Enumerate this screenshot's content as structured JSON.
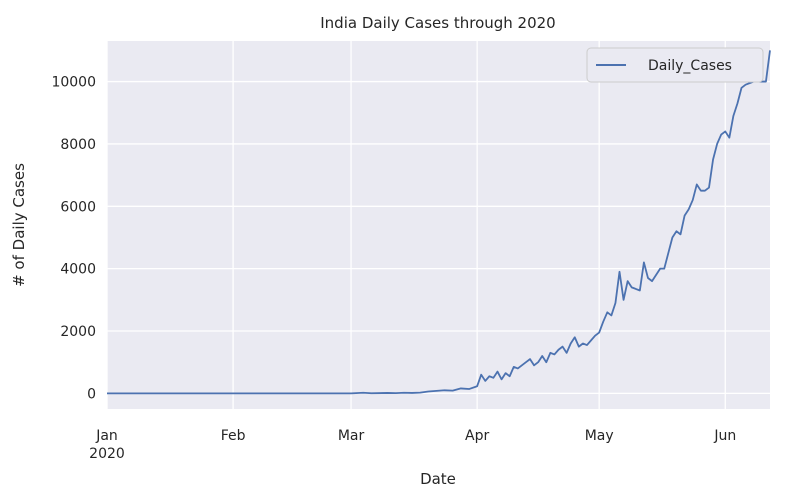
{
  "chart_data": {
    "type": "line",
    "title": "India Daily Cases through 2020",
    "xlabel": "Date",
    "ylabel": "# of Daily Cases",
    "x_range": [
      "2020-01-01",
      "2020-06-12"
    ],
    "ylim": [
      -500,
      11300
    ],
    "grid": true,
    "legend_position": "top-right",
    "colors": {
      "plot_bg": "#eaeaf2",
      "line": "#4c72b0",
      "grid": "#ffffff"
    },
    "x_ticks": [
      {
        "date": "2020-01-01",
        "label": "Jan",
        "sublabel": "2020"
      },
      {
        "date": "2020-02-01",
        "label": "Feb"
      },
      {
        "date": "2020-03-01",
        "label": "Mar"
      },
      {
        "date": "2020-04-01",
        "label": "Apr"
      },
      {
        "date": "2020-05-01",
        "label": "May"
      },
      {
        "date": "2020-06-01",
        "label": "Jun"
      }
    ],
    "y_ticks": [
      {
        "value": 0,
        "label": "0"
      },
      {
        "value": 2000,
        "label": "2000"
      },
      {
        "value": 4000,
        "label": "4000"
      },
      {
        "value": 6000,
        "label": "6000"
      },
      {
        "value": 8000,
        "label": "8000"
      },
      {
        "value": 10000,
        "label": "10000"
      }
    ],
    "series": [
      {
        "name": "Daily_Cases",
        "points": [
          [
            "2020-01-01",
            0
          ],
          [
            "2020-03-01",
            0
          ],
          [
            "2020-03-04",
            20
          ],
          [
            "2020-03-06",
            5
          ],
          [
            "2020-03-10",
            15
          ],
          [
            "2020-03-12",
            10
          ],
          [
            "2020-03-14",
            20
          ],
          [
            "2020-03-16",
            15
          ],
          [
            "2020-03-18",
            25
          ],
          [
            "2020-03-20",
            60
          ],
          [
            "2020-03-22",
            80
          ],
          [
            "2020-03-24",
            100
          ],
          [
            "2020-03-26",
            90
          ],
          [
            "2020-03-28",
            160
          ],
          [
            "2020-03-30",
            140
          ],
          [
            "2020-04-01",
            230
          ],
          [
            "2020-04-02",
            600
          ],
          [
            "2020-04-03",
            400
          ],
          [
            "2020-04-04",
            550
          ],
          [
            "2020-04-05",
            500
          ],
          [
            "2020-04-06",
            700
          ],
          [
            "2020-04-07",
            450
          ],
          [
            "2020-04-08",
            650
          ],
          [
            "2020-04-09",
            550
          ],
          [
            "2020-04-10",
            850
          ],
          [
            "2020-04-11",
            800
          ],
          [
            "2020-04-12",
            900
          ],
          [
            "2020-04-13",
            1000
          ],
          [
            "2020-04-14",
            1100
          ],
          [
            "2020-04-15",
            900
          ],
          [
            "2020-04-16",
            1000
          ],
          [
            "2020-04-17",
            1200
          ],
          [
            "2020-04-18",
            1000
          ],
          [
            "2020-04-19",
            1300
          ],
          [
            "2020-04-20",
            1250
          ],
          [
            "2020-04-21",
            1400
          ],
          [
            "2020-04-22",
            1500
          ],
          [
            "2020-04-23",
            1300
          ],
          [
            "2020-04-24",
            1600
          ],
          [
            "2020-04-25",
            1800
          ],
          [
            "2020-04-26",
            1500
          ],
          [
            "2020-04-27",
            1600
          ],
          [
            "2020-04-28",
            1550
          ],
          [
            "2020-04-29",
            1700
          ],
          [
            "2020-04-30",
            1850
          ],
          [
            "2020-05-01",
            1950
          ],
          [
            "2020-05-02",
            2300
          ],
          [
            "2020-05-03",
            2600
          ],
          [
            "2020-05-04",
            2500
          ],
          [
            "2020-05-05",
            2900
          ],
          [
            "2020-05-06",
            3900
          ],
          [
            "2020-05-07",
            3000
          ],
          [
            "2020-05-08",
            3600
          ],
          [
            "2020-05-09",
            3400
          ],
          [
            "2020-05-10",
            3350
          ],
          [
            "2020-05-11",
            3300
          ],
          [
            "2020-05-12",
            4200
          ],
          [
            "2020-05-13",
            3700
          ],
          [
            "2020-05-14",
            3600
          ],
          [
            "2020-05-15",
            3800
          ],
          [
            "2020-05-16",
            4000
          ],
          [
            "2020-05-17",
            4000
          ],
          [
            "2020-05-18",
            4500
          ],
          [
            "2020-05-19",
            5000
          ],
          [
            "2020-05-20",
            5200
          ],
          [
            "2020-05-21",
            5100
          ],
          [
            "2020-05-22",
            5700
          ],
          [
            "2020-05-23",
            5900
          ],
          [
            "2020-05-24",
            6200
          ],
          [
            "2020-05-25",
            6700
          ],
          [
            "2020-05-26",
            6500
          ],
          [
            "2020-05-27",
            6500
          ],
          [
            "2020-05-28",
            6600
          ],
          [
            "2020-05-29",
            7500
          ],
          [
            "2020-05-30",
            8000
          ],
          [
            "2020-05-31",
            8300
          ],
          [
            "2020-06-01",
            8400
          ],
          [
            "2020-06-02",
            8200
          ],
          [
            "2020-06-03",
            8900
          ],
          [
            "2020-06-04",
            9300
          ],
          [
            "2020-06-05",
            9800
          ],
          [
            "2020-06-06",
            9900
          ],
          [
            "2020-06-07",
            9950
          ],
          [
            "2020-06-08",
            10000
          ],
          [
            "2020-06-09",
            10000
          ],
          [
            "2020-06-10",
            10000
          ],
          [
            "2020-06-11",
            10000
          ],
          [
            "2020-06-12",
            11000
          ]
        ]
      }
    ]
  }
}
